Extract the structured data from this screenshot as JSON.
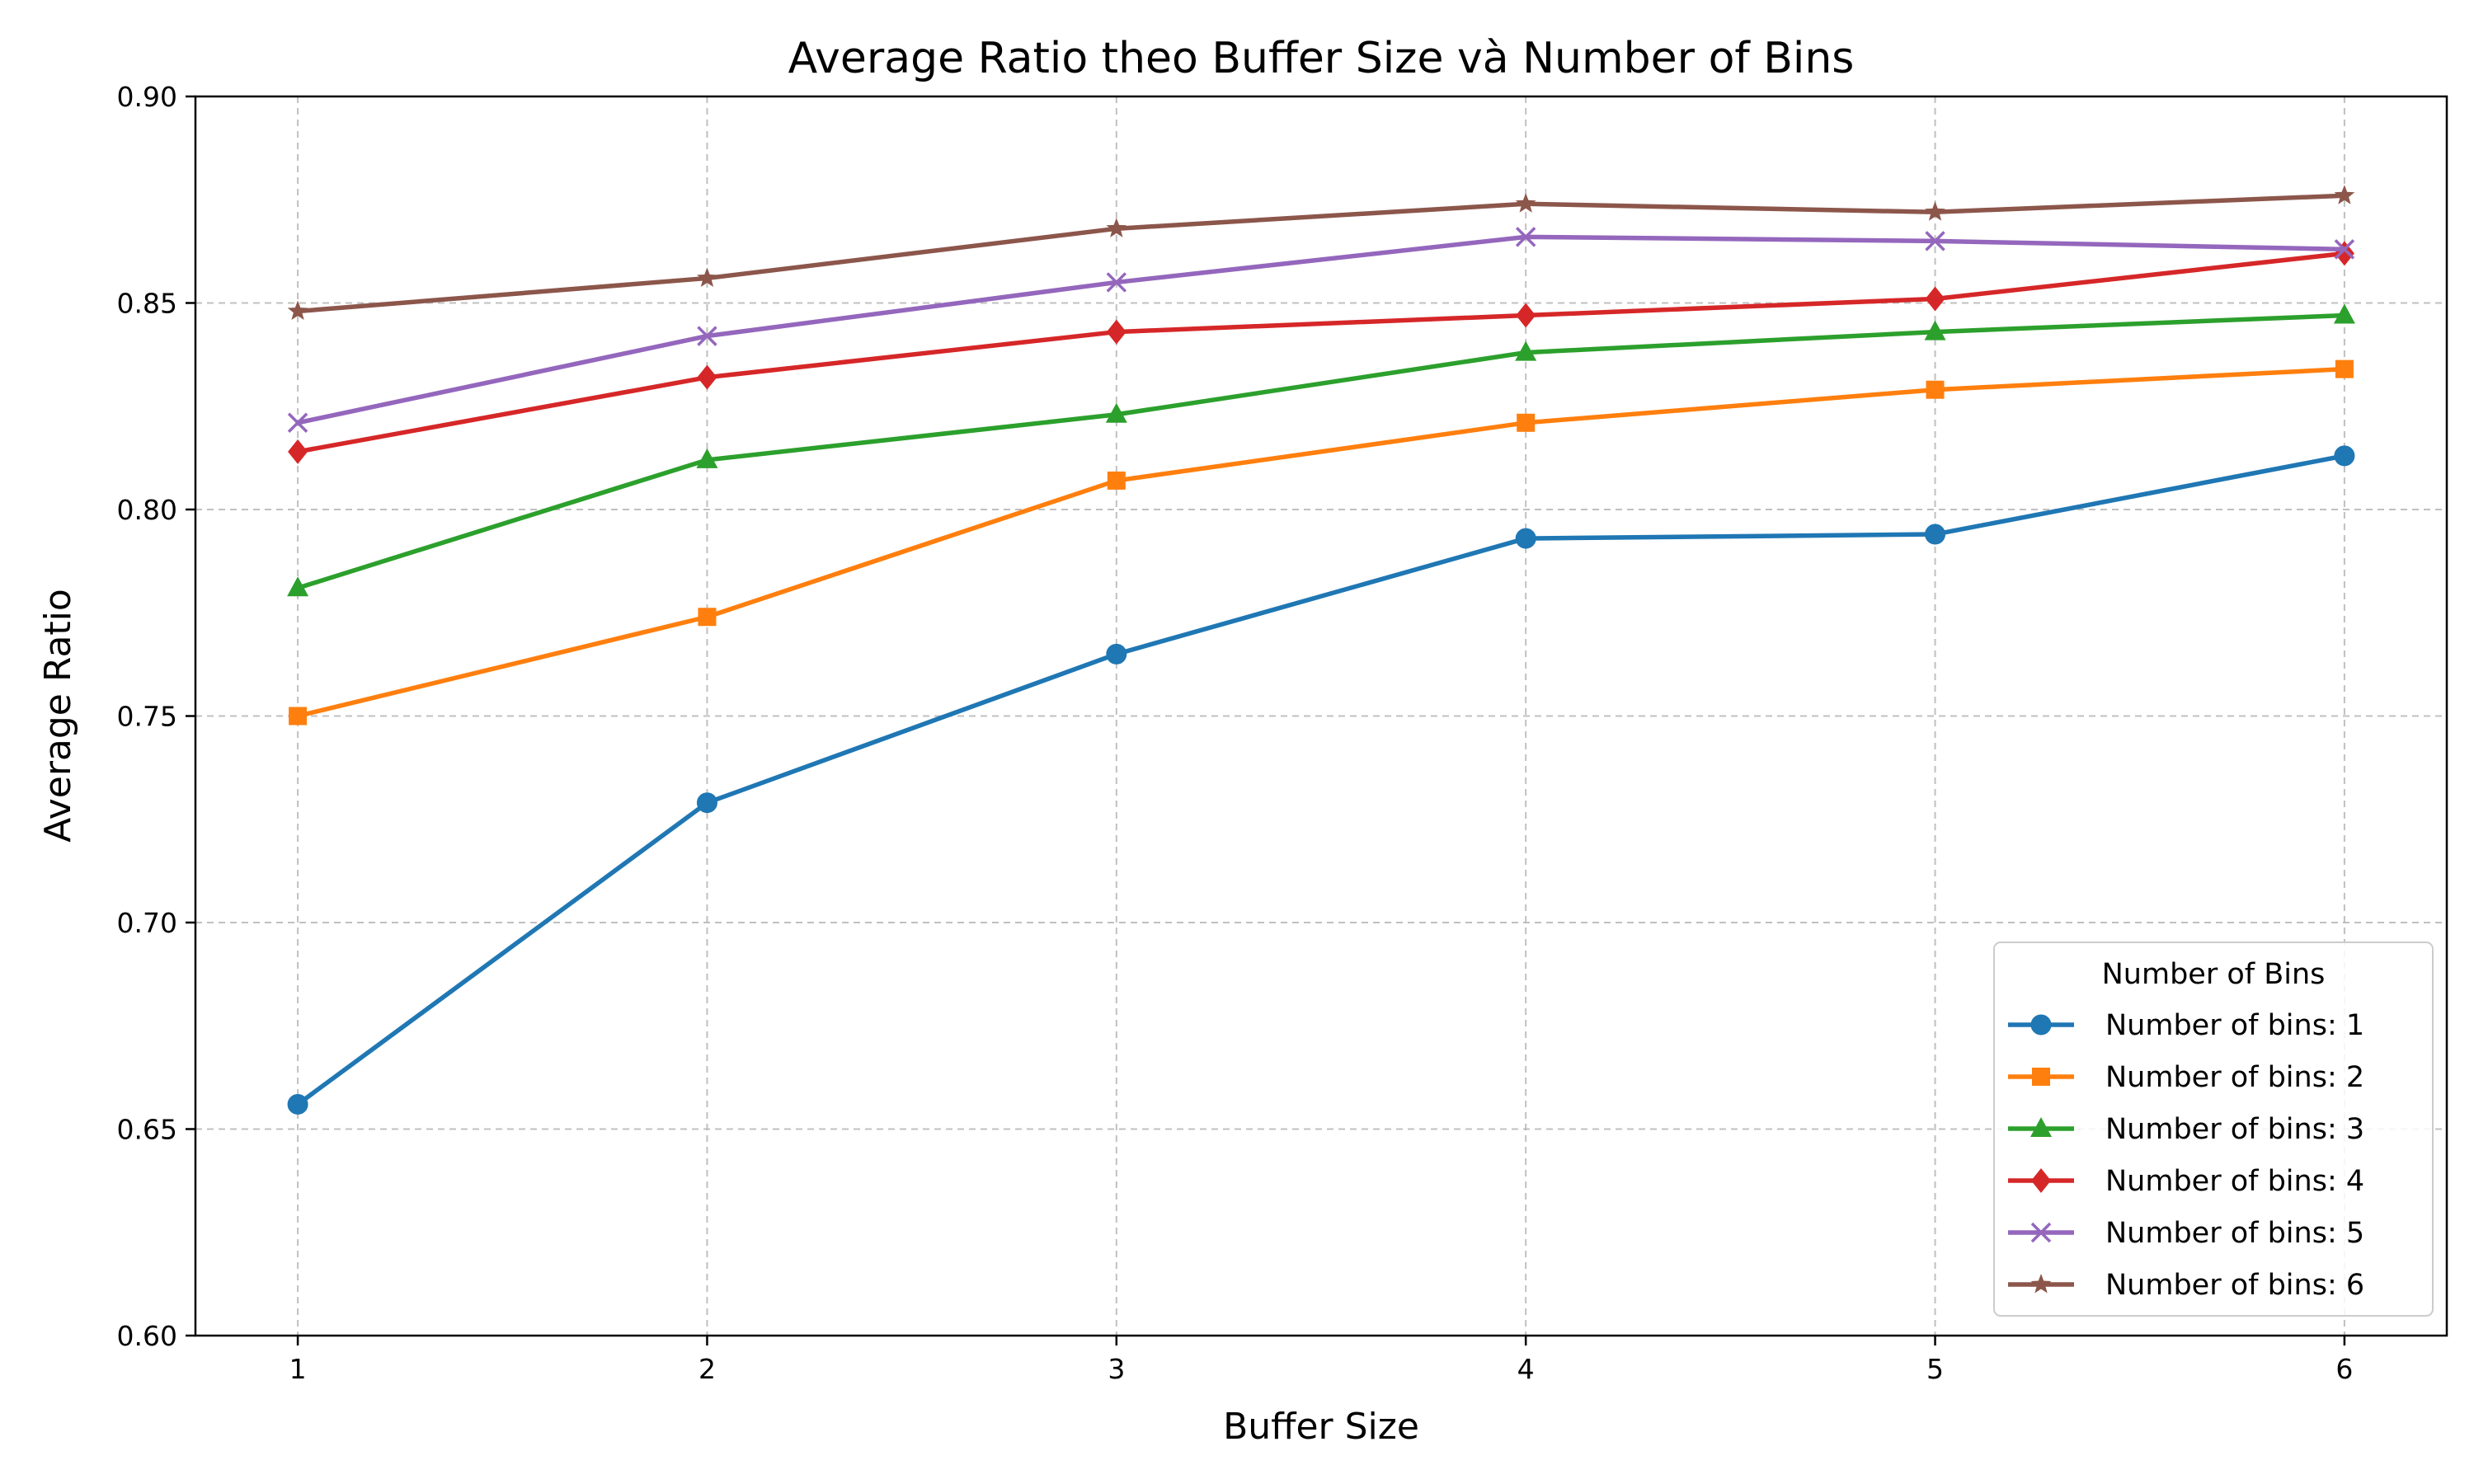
{
  "chart_data": {
    "type": "line",
    "title": "Average Ratio theo Buffer Size và Number of Bins",
    "xlabel": "Buffer Size",
    "ylabel": "Average Ratio",
    "x": [
      1,
      2,
      3,
      4,
      5,
      6
    ],
    "x_ticks": [
      "1",
      "2",
      "3",
      "4",
      "5",
      "6"
    ],
    "xlim": [
      0.75,
      6.25
    ],
    "ylim": [
      0.6,
      0.9
    ],
    "y_ticks": [
      "0.60",
      "0.65",
      "0.70",
      "0.75",
      "0.80",
      "0.85",
      "0.90"
    ],
    "grid": true,
    "legend": {
      "title": "Number of Bins",
      "position": "lower-right"
    },
    "series": [
      {
        "name": "Number of bins: 1",
        "color": "#1f77b4",
        "marker": "circle",
        "values": [
          0.656,
          0.729,
          0.765,
          0.793,
          0.794,
          0.813
        ]
      },
      {
        "name": "Number of bins: 2",
        "color": "#ff7f0e",
        "marker": "square",
        "values": [
          0.75,
          0.774,
          0.807,
          0.821,
          0.829,
          0.834
        ]
      },
      {
        "name": "Number of bins: 3",
        "color": "#2ca02c",
        "marker": "triangle",
        "values": [
          0.781,
          0.812,
          0.823,
          0.838,
          0.843,
          0.847
        ]
      },
      {
        "name": "Number of bins: 4",
        "color": "#d62728",
        "marker": "diamond",
        "values": [
          0.814,
          0.832,
          0.843,
          0.847,
          0.851,
          0.862
        ]
      },
      {
        "name": "Number of bins: 5",
        "color": "#9467bd",
        "marker": "x",
        "values": [
          0.821,
          0.842,
          0.855,
          0.866,
          0.865,
          0.863
        ]
      },
      {
        "name": "Number of bins: 6",
        "color": "#8c564b",
        "marker": "star",
        "values": [
          0.848,
          0.856,
          0.868,
          0.874,
          0.872,
          0.876
        ]
      }
    ]
  }
}
